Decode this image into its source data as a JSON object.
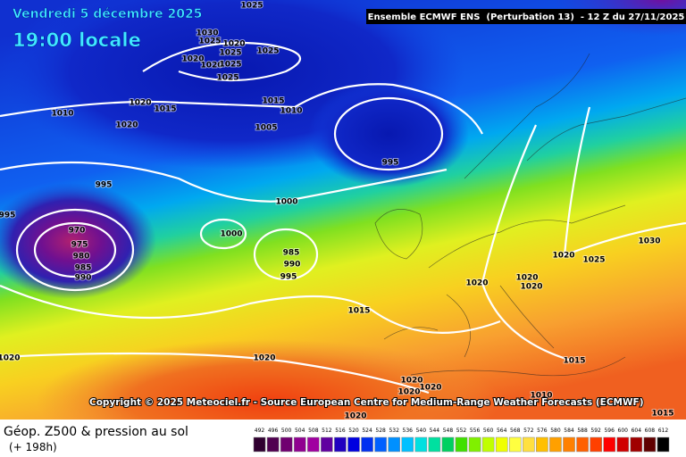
{
  "header": {
    "title": "Vendredi 5 décembre 2025",
    "time": "19:00 locale",
    "model": "Ensemble ECMWF ENS  (Perturbation 13)  - 12 Z du 27/11/2025"
  },
  "copyright": "Copyright © 2025 Meteociel.fr - Source European Centre for Medium-Range Weather Forecasts (ECMWF)",
  "legend": {
    "title": "Géop. Z500 & pression au sol",
    "lead": "(+ 198h)"
  },
  "colorbar": {
    "labels": [
      492,
      496,
      500,
      504,
      508,
      512,
      516,
      520,
      524,
      528,
      532,
      536,
      540,
      544,
      548,
      552,
      556,
      560,
      564,
      568,
      572,
      576,
      580,
      584,
      588,
      592,
      596,
      600,
      604,
      608,
      612
    ],
    "colors": [
      "#300030",
      "#500050",
      "#700070",
      "#900090",
      "#a000a0",
      "#6000a0",
      "#2000c0",
      "#0000e0",
      "#0030f0",
      "#0060ff",
      "#0090ff",
      "#00c0ff",
      "#00e0e0",
      "#00e0a0",
      "#00d060",
      "#40e000",
      "#80f000",
      "#c0ff00",
      "#f0ff00",
      "#ffff40",
      "#ffe040",
      "#ffc000",
      "#ffa000",
      "#ff8000",
      "#ff6000",
      "#ff4000",
      "#ff0000",
      "#d00000",
      "#a00000",
      "#600000",
      "#000000"
    ]
  },
  "isobar_labels": [
    "1025",
    "1030",
    "1025",
    "1020",
    "1025",
    "1020",
    "1020",
    "1025",
    "1025",
    "1025",
    "1020",
    "1015",
    "1010",
    "1020",
    "1015",
    "1010",
    "1005",
    "995",
    "995",
    "1000",
    "1000",
    "985",
    "990",
    "995",
    "970",
    "975",
    "980",
    "985",
    "990",
    "995",
    "1015",
    "1020",
    "1020",
    "1020",
    "1020",
    "1025",
    "1030",
    "1015",
    "1010",
    "1020",
    "1020",
    "1020",
    "1020",
    "1020",
    "1020",
    "1015"
  ]
}
